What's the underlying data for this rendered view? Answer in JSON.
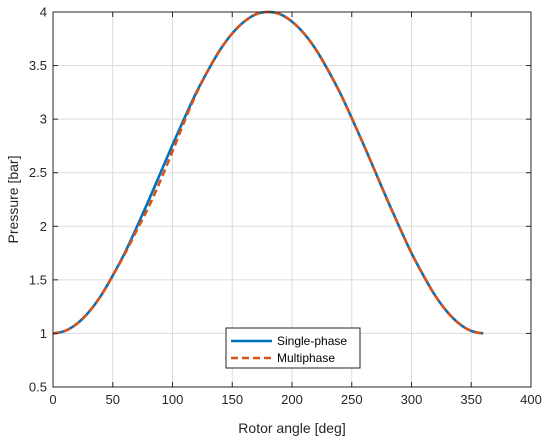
{
  "chart_data": {
    "type": "line",
    "title": "",
    "xlabel": "Rotor angle [deg]",
    "ylabel": "Pressure [bar]",
    "xlim": [
      0,
      400
    ],
    "ylim": [
      0.5,
      4
    ],
    "xticks": [
      0,
      50,
      100,
      150,
      200,
      250,
      300,
      350,
      400
    ],
    "yticks": [
      0.5,
      1,
      1.5,
      2,
      2.5,
      3,
      3.5,
      4
    ],
    "xtick_labels": [
      "0",
      "50",
      "100",
      "150",
      "200",
      "250",
      "300",
      "350",
      "400"
    ],
    "ytick_labels": [
      "0.5",
      "1",
      "1.5",
      "2",
      "2.5",
      "3",
      "3.5",
      "4"
    ],
    "grid": true,
    "legend_position": "bottom-center",
    "series": [
      {
        "name": "Single-phase",
        "color": "#0072BD",
        "style": "solid",
        "x": [
          0,
          10,
          20,
          30,
          40,
          50,
          60,
          70,
          80,
          90,
          100,
          110,
          120,
          130,
          140,
          150,
          160,
          170,
          180,
          190,
          200,
          210,
          220,
          230,
          240,
          250,
          260,
          270,
          280,
          290,
          300,
          310,
          320,
          330,
          340,
          350,
          360
        ],
        "y": [
          1.0,
          1.023,
          1.09,
          1.2,
          1.35,
          1.54,
          1.75,
          1.99,
          2.24,
          2.5,
          2.76,
          3.01,
          3.25,
          3.46,
          3.65,
          3.8,
          3.91,
          3.98,
          4.0,
          3.98,
          3.91,
          3.8,
          3.65,
          3.46,
          3.25,
          3.01,
          2.76,
          2.5,
          2.24,
          1.99,
          1.75,
          1.54,
          1.35,
          1.2,
          1.09,
          1.023,
          1.0
        ]
      },
      {
        "name": "Multiphase",
        "color": "#D95319",
        "style": "dashed",
        "x": [
          0,
          10,
          20,
          30,
          40,
          50,
          60,
          70,
          80,
          90,
          100,
          110,
          120,
          130,
          140,
          150,
          160,
          170,
          180,
          190,
          200,
          210,
          220,
          230,
          240,
          250,
          260,
          270,
          280,
          290,
          300,
          310,
          320,
          330,
          340,
          350,
          360
        ],
        "y": [
          1.0,
          1.023,
          1.09,
          1.2,
          1.35,
          1.54,
          1.74,
          1.96,
          2.18,
          2.43,
          2.7,
          2.98,
          3.24,
          3.46,
          3.65,
          3.8,
          3.91,
          3.98,
          4.0,
          3.98,
          3.91,
          3.8,
          3.65,
          3.46,
          3.25,
          3.01,
          2.76,
          2.5,
          2.24,
          1.99,
          1.75,
          1.54,
          1.35,
          1.2,
          1.09,
          1.023,
          1.0
        ]
      }
    ]
  }
}
